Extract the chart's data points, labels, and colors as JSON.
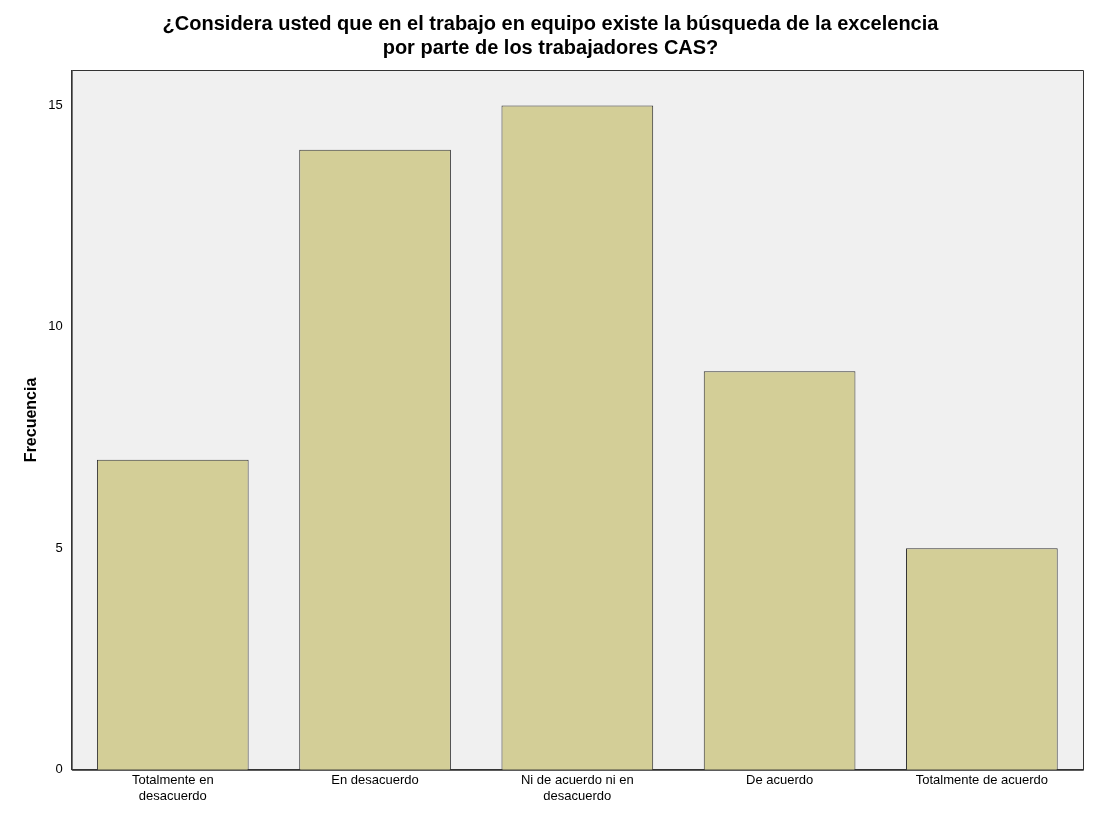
{
  "chart_data": {
    "type": "bar",
    "title": "¿Considera usted que en el trabajo en equipo existe la búsqueda de la excelencia por parte de los trabajadores CAS?",
    "ylabel": "Frecuencia",
    "categories": [
      "Totalmente en desacuerdo",
      "En desacuerdo",
      "Ni de acuerdo ni en desacuerdo",
      "De acuerdo",
      "Totalmente de acuerdo"
    ],
    "values": [
      7,
      14,
      15,
      9,
      5
    ],
    "color": "#d3ce97",
    "ylim": [
      0,
      15.8
    ],
    "yticks": [
      0,
      5,
      10,
      15
    ]
  }
}
